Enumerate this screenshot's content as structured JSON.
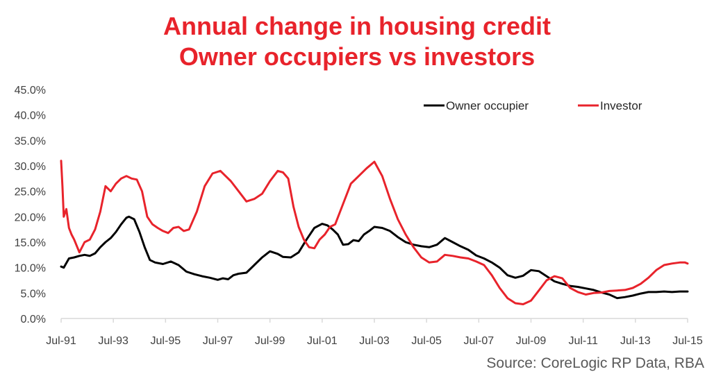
{
  "chart_data": {
    "type": "line",
    "title": "Annual change in housing credit",
    "subtitle": "Owner occupiers vs investors",
    "source": "Source: CoreLogic RP Data, RBA",
    "xlabel": "",
    "ylabel": "",
    "ylim": [
      0,
      45
    ],
    "yticks": [
      "0.0%",
      "5.0%",
      "10.0%",
      "15.0%",
      "20.0%",
      "25.0%",
      "30.0%",
      "35.0%",
      "40.0%",
      "45.0%"
    ],
    "xlim": [
      1991.5,
      2015.5
    ],
    "xticks": [
      "Jul-91",
      "Jul-93",
      "Jul-95",
      "Jul-97",
      "Jul-99",
      "Jul-01",
      "Jul-03",
      "Jul-05",
      "Jul-07",
      "Jul-09",
      "Jul-11",
      "Jul-13",
      "Jul-15"
    ],
    "grid": false,
    "legend": "top-right",
    "colors": {
      "owner": "#000000",
      "investor": "#e8232b",
      "title": "#e8232b"
    },
    "series": [
      {
        "name": "Owner occupier",
        "x": [
          1991.5,
          1991.6,
          1991.8,
          1992.0,
          1992.2,
          1992.4,
          1992.6,
          1992.8,
          1993.0,
          1993.2,
          1993.4,
          1993.6,
          1993.8,
          1994.0,
          1994.1,
          1994.3,
          1994.5,
          1994.7,
          1994.9,
          1995.1,
          1995.4,
          1995.7,
          1996.0,
          1996.3,
          1996.6,
          1996.9,
          1997.2,
          1997.5,
          1997.7,
          1997.9,
          1998.1,
          1998.3,
          1998.6,
          1998.9,
          1999.2,
          1999.5,
          1999.8,
          2000.0,
          2000.3,
          2000.6,
          2000.9,
          2001.2,
          2001.5,
          2001.7,
          2001.9,
          2002.1,
          2002.3,
          2002.5,
          2002.7,
          2002.9,
          2003.1,
          2003.3,
          2003.5,
          2003.8,
          2004.1,
          2004.4,
          2004.7,
          2005.0,
          2005.3,
          2005.6,
          2005.9,
          2006.2,
          2006.5,
          2006.8,
          2007.1,
          2007.4,
          2007.7,
          2008.0,
          2008.3,
          2008.6,
          2008.9,
          2009.2,
          2009.5,
          2009.8,
          2010.1,
          2010.4,
          2010.7,
          2011.0,
          2011.3,
          2011.6,
          2011.9,
          2012.2,
          2012.5,
          2012.8,
          2013.1,
          2013.4,
          2013.7,
          2014.0,
          2014.3,
          2014.6,
          2014.9,
          2015.2,
          2015.5
        ],
        "values": [
          10.2,
          10.0,
          11.8,
          12.0,
          12.3,
          12.5,
          12.3,
          12.8,
          14.0,
          15.0,
          15.8,
          17.0,
          18.5,
          19.8,
          20.0,
          19.5,
          17.0,
          14.0,
          11.5,
          11.0,
          10.7,
          11.2,
          10.5,
          9.2,
          8.7,
          8.3,
          8.0,
          7.6,
          7.9,
          7.7,
          8.5,
          8.8,
          9.0,
          10.5,
          12.0,
          13.2,
          12.7,
          12.1,
          12.0,
          13.0,
          15.5,
          17.8,
          18.6,
          18.3,
          17.5,
          16.5,
          14.5,
          14.6,
          15.4,
          15.2,
          16.5,
          17.2,
          18.0,
          17.8,
          17.2,
          16.0,
          15.0,
          14.5,
          14.2,
          14.0,
          14.5,
          15.8,
          15.0,
          14.2,
          13.5,
          12.4,
          11.8,
          11.0,
          10.0,
          8.5,
          8.0,
          8.4,
          9.5,
          9.3,
          8.3,
          7.3,
          6.8,
          6.4,
          6.2,
          5.9,
          5.6,
          5.1,
          4.7,
          4.0,
          4.2,
          4.5,
          4.9,
          5.2,
          5.2,
          5.3,
          5.2,
          5.3,
          5.3
        ]
      },
      {
        "name": "Investor",
        "x": [
          1991.5,
          1991.55,
          1991.6,
          1991.7,
          1991.8,
          1991.9,
          1992.0,
          1992.2,
          1992.4,
          1992.6,
          1992.8,
          1993.0,
          1993.2,
          1993.4,
          1993.6,
          1993.8,
          1994.0,
          1994.2,
          1994.4,
          1994.6,
          1994.8,
          1995.0,
          1995.2,
          1995.4,
          1995.6,
          1995.8,
          1996.0,
          1996.2,
          1996.4,
          1996.7,
          1997.0,
          1997.3,
          1997.6,
          1997.8,
          1998.0,
          1998.3,
          1998.6,
          1998.9,
          1999.2,
          1999.5,
          1999.8,
          2000.0,
          2000.2,
          2000.4,
          2000.6,
          2000.8,
          2001.0,
          2001.2,
          2001.4,
          2001.6,
          2001.8,
          2002.0,
          2002.3,
          2002.6,
          2002.9,
          2003.2,
          2003.5,
          2003.8,
          2004.1,
          2004.4,
          2004.7,
          2005.0,
          2005.3,
          2005.6,
          2005.9,
          2006.2,
          2006.5,
          2006.8,
          2007.1,
          2007.4,
          2007.7,
          2008.0,
          2008.3,
          2008.6,
          2008.9,
          2009.2,
          2009.5,
          2009.8,
          2010.1,
          2010.4,
          2010.7,
          2011.0,
          2011.3,
          2011.6,
          2011.9,
          2012.2,
          2012.5,
          2012.8,
          2013.1,
          2013.4,
          2013.7,
          2014.0,
          2014.3,
          2014.6,
          2014.9,
          2015.2,
          2015.4,
          2015.5
        ],
        "values": [
          31.0,
          26.0,
          20.0,
          21.5,
          17.8,
          16.5,
          15.5,
          13.0,
          15.0,
          15.5,
          17.5,
          21.0,
          26.0,
          25.0,
          26.5,
          27.5,
          28.0,
          27.5,
          27.3,
          25.0,
          20.0,
          18.5,
          17.8,
          17.2,
          16.8,
          17.8,
          18.0,
          17.2,
          17.5,
          21.0,
          26.0,
          28.5,
          29.0,
          28.0,
          27.0,
          25.0,
          23.0,
          23.5,
          24.5,
          27.0,
          29.0,
          28.7,
          27.5,
          22.0,
          18.0,
          15.5,
          14.0,
          13.8,
          15.5,
          16.5,
          18.0,
          18.5,
          22.5,
          26.5,
          28.0,
          29.5,
          30.8,
          28.0,
          23.5,
          19.5,
          16.5,
          14.0,
          12.0,
          11.0,
          11.2,
          12.5,
          12.3,
          12.0,
          11.8,
          11.2,
          10.5,
          8.5,
          6.0,
          4.0,
          3.0,
          2.8,
          3.5,
          5.5,
          7.5,
          8.3,
          7.9,
          6.0,
          5.2,
          4.7,
          5.0,
          5.1,
          5.4,
          5.5,
          5.6,
          6.0,
          6.8,
          8.0,
          9.5,
          10.5,
          10.8,
          11.0,
          11.0,
          10.8
        ]
      }
    ]
  }
}
